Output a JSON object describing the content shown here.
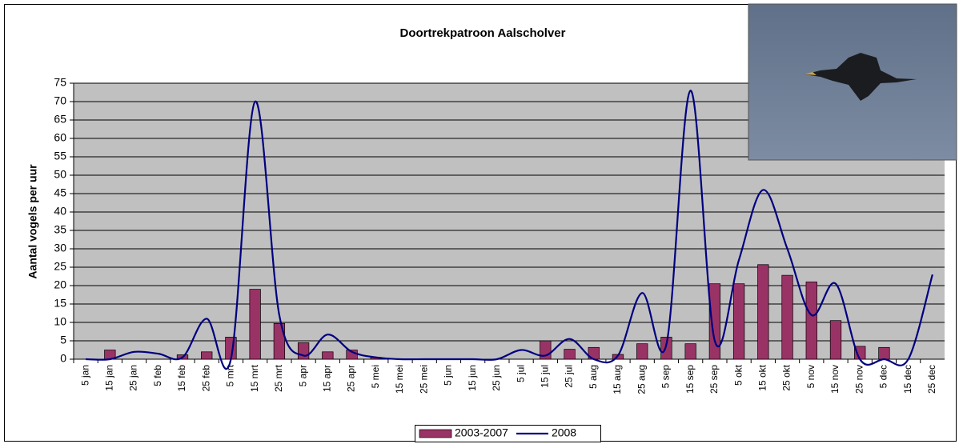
{
  "chart_data": {
    "type": "bar-line",
    "title": "Doortrekpatroon Aalscholver",
    "y_label": "Aantal vogels per uur",
    "categories": [
      "5 jan",
      "15 jan",
      "25 jan",
      "5 feb",
      "15 feb",
      "25 feb",
      "5 mrt",
      "15 mrt",
      "25 mrt",
      "5 apr",
      "15 apr",
      "25 apr",
      "5 mei",
      "15 mei",
      "25 mei",
      "5 jun",
      "15 jun",
      "25 jun",
      "5 jul",
      "15 jul",
      "25 jul",
      "5 aug",
      "15 aug",
      "25 aug",
      "5 sep",
      "15 sep",
      "25 sep",
      "5 okt",
      "15 okt",
      "25 okt",
      "5 nov",
      "15 nov",
      "25 nov",
      "5 dec",
      "15 dec",
      "25 dec"
    ],
    "series": [
      {
        "name": "2003-2007",
        "type": "bar",
        "color": "#993366",
        "values": [
          0,
          2.5,
          0,
          0,
          1.2,
          2,
          6,
          19,
          9.7,
          4.5,
          2,
          2.5,
          0.5,
          0,
          0,
          0,
          0,
          0,
          0,
          5,
          2.7,
          3.2,
          1.3,
          4.2,
          6,
          4.2,
          20.5,
          20.5,
          25.7,
          22.8,
          21,
          10.5,
          3.5,
          3.2,
          0,
          0
        ]
      },
      {
        "name": "2008",
        "type": "line",
        "color": "#000080",
        "values": [
          0,
          0,
          2,
          1.5,
          0.5,
          11,
          0,
          70,
          12,
          1,
          6.7,
          2,
          0.5,
          0,
          0,
          0,
          0,
          0,
          2.5,
          1,
          5.5,
          0,
          1,
          18,
          4,
          73,
          5,
          27,
          46,
          30,
          12,
          20.5,
          0,
          0,
          0,
          23
        ]
      }
    ],
    "ylim": [
      0,
      75
    ],
    "yticks": [
      0,
      5,
      10,
      15,
      20,
      25,
      30,
      35,
      40,
      45,
      50,
      55,
      60,
      65,
      70,
      75
    ],
    "grid": true,
    "plot_background": "#c0c0c0",
    "legend": "bottom"
  }
}
